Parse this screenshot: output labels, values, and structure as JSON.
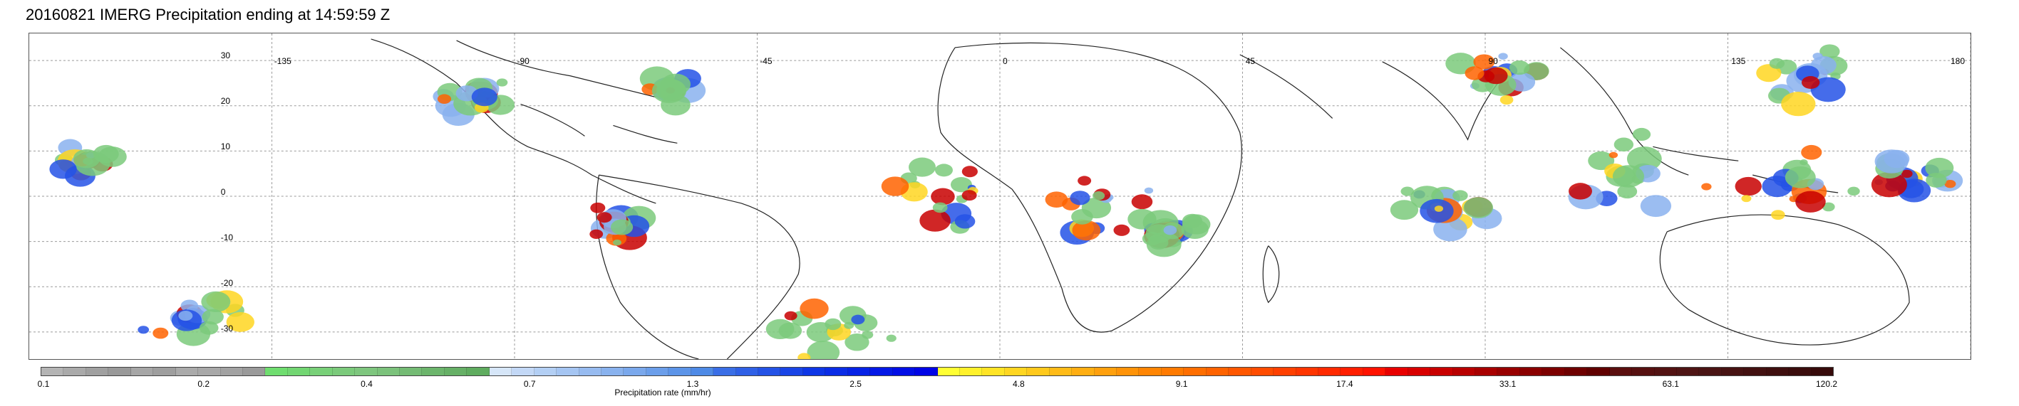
{
  "title": "20160821 IMERG Precipitation ending at 14:59:59 Z",
  "map": {
    "latitudes": [
      30,
      20,
      10,
      0,
      -10,
      -20,
      -30
    ],
    "latitude_labels": [
      "30",
      "20",
      "10",
      "0",
      "-10",
      "-20",
      "-30"
    ],
    "longitudes": [
      -135,
      -90,
      -45,
      0,
      45,
      90,
      135,
      180
    ],
    "longitude_labels": [
      "-135",
      "-90",
      "-45",
      "0",
      "45",
      "90",
      "135",
      "180"
    ],
    "lat_range": [
      -36,
      36
    ],
    "lon_range": [
      -180,
      180
    ]
  },
  "colorbar": {
    "label": "Precipitation rate (mm/hr)",
    "tick_labels": [
      "0.1",
      "0.2",
      "0.4",
      "0.7",
      "1.3",
      "2.5",
      "4.8",
      "9.1",
      "17.4",
      "33.1",
      "63.1",
      "120.2"
    ],
    "colors": [
      "#b4b4b4",
      "#aaaaaa",
      "#a0a0a0",
      "#999999",
      "#a6a6a6",
      "#9e9e9e",
      "#aaaaaa",
      "#a8a8a8",
      "#a2a2a2",
      "#9a9a9a",
      "#6fdd6f",
      "#72d672",
      "#78d078",
      "#7bca7b",
      "#7ec67e",
      "#7bc27b",
      "#74bb74",
      "#6cb56c",
      "#66b066",
      "#5fac5f",
      "#d6e6f8",
      "#c3d8f6",
      "#b3cff4",
      "#a5c5f2",
      "#97bbf0",
      "#89b2ee",
      "#7aa8ec",
      "#6b9eea",
      "#5c94e8",
      "#4e8ae6",
      "#3a6ee6",
      "#2f60e6",
      "#2452e6",
      "#1944e6",
      "#0e36e6",
      "#0a2ce6",
      "#0622e6",
      "#0418e6",
      "#020ee6",
      "#0004e6",
      "#ffff33",
      "#fff12b",
      "#ffe426",
      "#ffd621",
      "#ffc91c",
      "#ffbb17",
      "#ffae12",
      "#ffa00d",
      "#ff9308",
      "#ff8503",
      "#ff7a00",
      "#ff6e00",
      "#ff6300",
      "#ff5700",
      "#ff4c00",
      "#ff4000",
      "#ff3500",
      "#ff2900",
      "#ff1e00",
      "#ff1200",
      "#e80000",
      "#d80000",
      "#c80000",
      "#b80000",
      "#a80000",
      "#980000",
      "#8a0000",
      "#7c0000",
      "#6e0000",
      "#600000",
      "#5a0e0e",
      "#561010",
      "#521212",
      "#4e1414",
      "#4a1414",
      "#461212",
      "#421010",
      "#3e0e0e",
      "#3a0c0c",
      "#360a0a"
    ]
  }
}
